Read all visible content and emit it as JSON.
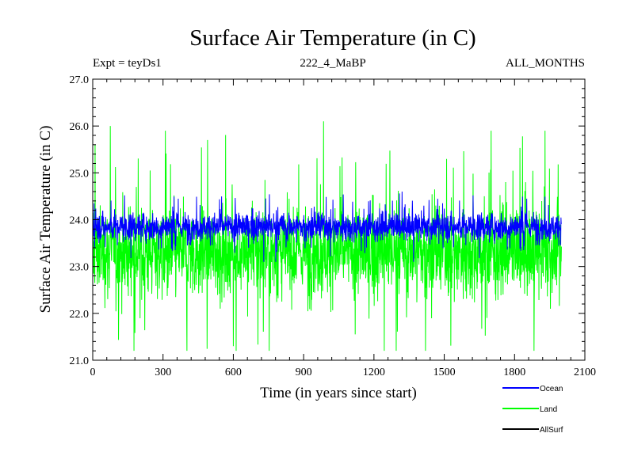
{
  "chart_data": {
    "type": "line",
    "title": "Surface Air Temperature (in C)",
    "subtitle_left": "Expt = teyDs1",
    "subtitle_center": "222_4_MaBP",
    "subtitle_right": "ALL_MONTHS",
    "xlabel": "Time (in years since start)",
    "ylabel": "Surface Air Temperature (in C)",
    "xlim": [
      0,
      2100
    ],
    "ylim": [
      21.0,
      27.0
    ],
    "x_ticks": [
      0,
      300,
      600,
      900,
      1200,
      1500,
      1800,
      2100
    ],
    "x_tick_labels": [
      "0",
      "300",
      "600",
      "900",
      "1200",
      "1500",
      "1800",
      "2100"
    ],
    "y_ticks": [
      21.0,
      22.0,
      23.0,
      24.0,
      25.0,
      26.0,
      27.0
    ],
    "y_tick_labels": [
      "21.0",
      "22.0",
      "23.0",
      "24.0",
      "25.0",
      "26.0",
      "27.0"
    ],
    "x_range": [
      0,
      2000
    ],
    "series": [
      {
        "name": "Land",
        "color": "#00ff00",
        "description_stats": {
          "mean": 23.3,
          "min": 21.2,
          "max": 26.1,
          "spread": 1.1
        },
        "peaks": [
          {
            "x": 10,
            "y": 25.6
          },
          {
            "x": 75,
            "y": 26.0
          },
          {
            "x": 310,
            "y": 25.9
          },
          {
            "x": 490,
            "y": 25.7
          },
          {
            "x": 600,
            "y": 21.3
          },
          {
            "x": 985,
            "y": 26.1
          },
          {
            "x": 1420,
            "y": 21.2
          },
          {
            "x": 1700,
            "y": 25.9
          },
          {
            "x": 1930,
            "y": 25.9
          }
        ]
      },
      {
        "name": "Ocean",
        "color": "#0000ff",
        "description_stats": {
          "mean": 23.85,
          "min": 23.1,
          "max": 24.6,
          "spread": 0.35
        }
      },
      {
        "name": "AllSurf",
        "color": "#000000"
      }
    ],
    "legend": [
      "Ocean",
      "Land",
      "AllSurf"
    ],
    "legend_position": "bottom-right"
  }
}
